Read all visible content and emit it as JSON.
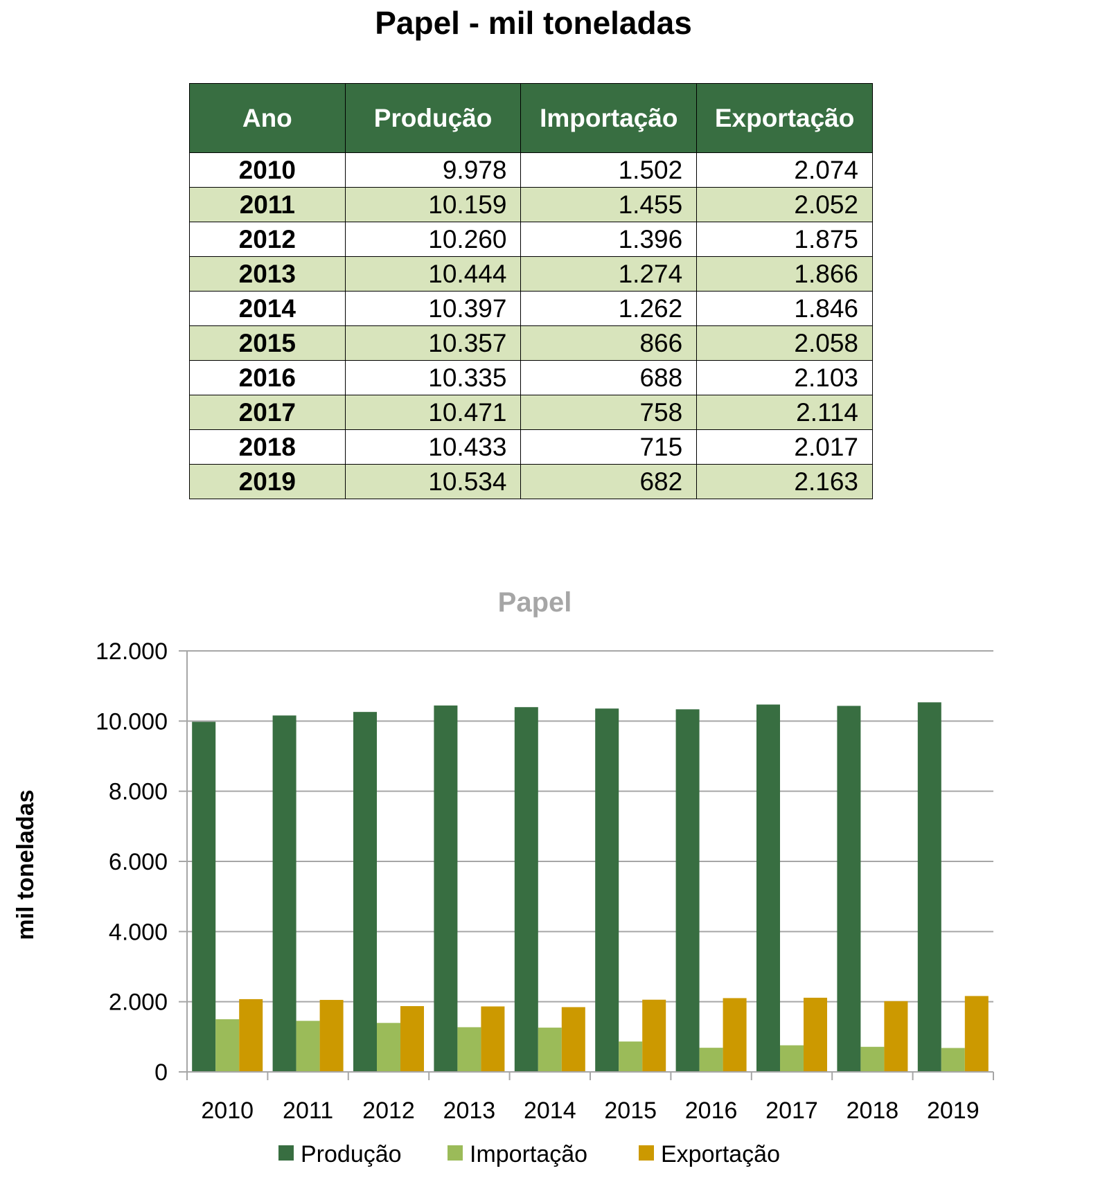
{
  "title": "Papel - mil toneladas",
  "colors": {
    "producao": "#386e41",
    "importacao": "#9bbb59",
    "exportacao": "#cc9900",
    "header_bg": "#386e41",
    "alt_row": "#d8e4bc",
    "grid": "#a6a6a6"
  },
  "table": {
    "headers": [
      "Ano",
      "Produção",
      "Importação",
      "Exportação"
    ],
    "rows": [
      [
        "2010",
        "9.978",
        "1.502",
        "2.074"
      ],
      [
        "2011",
        "10.159",
        "1.455",
        "2.052"
      ],
      [
        "2012",
        "10.260",
        "1.396",
        "1.875"
      ],
      [
        "2013",
        "10.444",
        "1.274",
        "1.866"
      ],
      [
        "2014",
        "10.397",
        "1.262",
        "1.846"
      ],
      [
        "2015",
        "10.357",
        "866",
        "2.058"
      ],
      [
        "2016",
        "10.335",
        "688",
        "2.103"
      ],
      [
        "2017",
        "10.471",
        "758",
        "2.114"
      ],
      [
        "2018",
        "10.433",
        "715",
        "2.017"
      ],
      [
        "2019",
        "10.534",
        "682",
        "2.163"
      ]
    ]
  },
  "chart_data": {
    "type": "bar",
    "title": "Papel",
    "xlabel": "",
    "ylabel": "mil toneladas",
    "categories": [
      "2010",
      "2011",
      "2012",
      "2013",
      "2014",
      "2015",
      "2016",
      "2017",
      "2018",
      "2019"
    ],
    "series": [
      {
        "name": "Produção",
        "color": "#386e41",
        "values": [
          9978,
          10159,
          10260,
          10444,
          10397,
          10357,
          10335,
          10471,
          10433,
          10534
        ]
      },
      {
        "name": "Importação",
        "color": "#9bbb59",
        "values": [
          1502,
          1455,
          1396,
          1274,
          1262,
          866,
          688,
          758,
          715,
          682
        ]
      },
      {
        "name": "Exportação",
        "color": "#cc9900",
        "values": [
          2074,
          2052,
          1875,
          1866,
          1846,
          2058,
          2103,
          2114,
          2017,
          2163
        ]
      }
    ],
    "ylim": [
      0,
      12000
    ],
    "yticks": [
      0,
      2000,
      4000,
      6000,
      8000,
      10000,
      12000
    ],
    "ytick_labels": [
      "0",
      "2.000",
      "4.000",
      "6.000",
      "8.000",
      "10.000",
      "12.000"
    ],
    "grid": true,
    "legend": "bottom"
  }
}
